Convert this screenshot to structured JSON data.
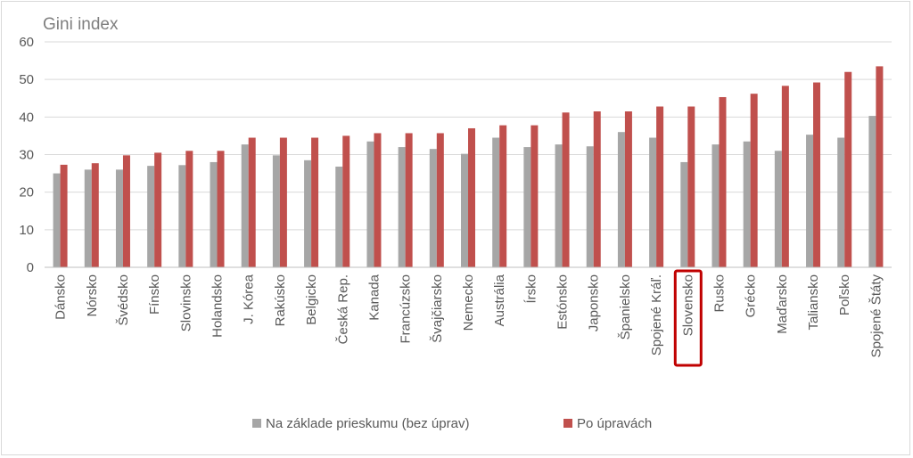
{
  "chart_data": {
    "type": "bar",
    "ylabel": "Gini index",
    "ylim": [
      0,
      60
    ],
    "yticks": [
      0,
      10,
      20,
      30,
      40,
      50,
      60
    ],
    "grid": true,
    "legend_position": "bottom",
    "categories": [
      "Dánsko",
      "Nórsko",
      "Švédsko",
      "Fínsko",
      "Slovinsko",
      "Holandsko",
      "J. Kórea",
      "Rakúsko",
      "Belgicko",
      "Česká Rep.",
      "Kanada",
      "Francúzsko",
      "Švajčiarsko",
      "Nemecko",
      "Austrália",
      "Írsko",
      "Estónsko",
      "Japonsko",
      "Španielsko",
      "Spojené Kráľ.",
      "Slovensko",
      "Rusko",
      "Grécko",
      "Maďarsko",
      "Taliansko",
      "Poľsko",
      "Spojené Štáty"
    ],
    "highlighted_category": "Slovensko",
    "series": [
      {
        "name": "Na základe prieskumu (bez úprav)",
        "color": "#a6a6a6",
        "values": [
          25,
          26,
          26,
          27,
          27.2,
          28,
          32.7,
          29.8,
          28.5,
          26.8,
          33.5,
          32,
          31.5,
          30.2,
          34.5,
          32,
          32.7,
          32.2,
          36,
          34.5,
          28,
          32.7,
          33.5,
          31,
          35.3,
          34.5,
          40.3
        ]
      },
      {
        "name": "Po úpravách",
        "color": "#c0504d",
        "values": [
          27.3,
          27.7,
          29.8,
          30.5,
          31,
          31,
          34.5,
          34.5,
          34.5,
          35,
          35.7,
          35.7,
          35.7,
          37,
          37.8,
          37.8,
          41.2,
          41.5,
          41.5,
          42.8,
          42.8,
          45.3,
          46.2,
          48.3,
          49.2,
          52,
          53.5
        ]
      }
    ]
  }
}
